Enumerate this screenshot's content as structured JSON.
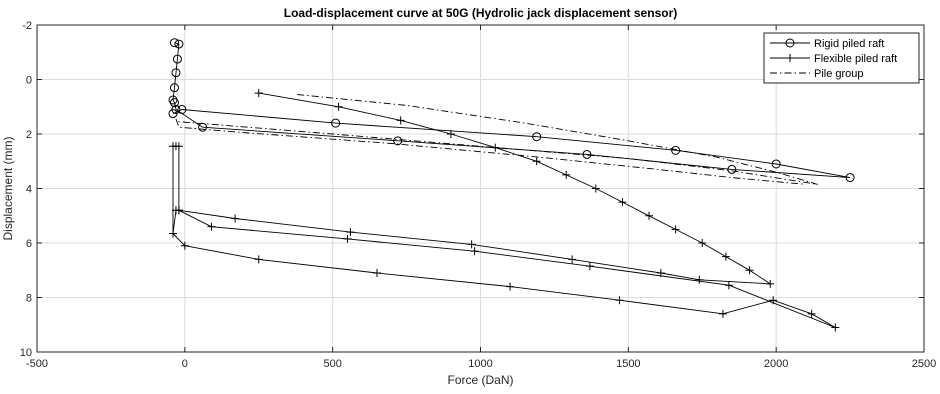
{
  "chart_data": {
    "type": "line",
    "title": "Load-displacement curve at 50G (Hydrolic jack displacement sensor)",
    "xlabel": "Force (DaN)",
    "ylabel": "Displacement (mm)",
    "xlim": [
      -500,
      2500
    ],
    "ylim": [
      -2,
      10
    ],
    "y_reversed": true,
    "grid": true,
    "legend_position": "top-right",
    "x_ticks": [
      "-500",
      "0",
      "500",
      "1000",
      "1500",
      "2000",
      "2500"
    ],
    "y_ticks": [
      "-2",
      "0",
      "2",
      "4",
      "6",
      "8",
      "10"
    ],
    "series": [
      {
        "name": "Rigid piled raft",
        "marker": "circle",
        "line": "solid",
        "points": [
          [
            -35,
            -1.35
          ],
          [
            -20,
            -1.3
          ],
          [
            -25,
            -0.75
          ],
          [
            -30,
            -0.25
          ],
          [
            -35,
            0.3
          ],
          [
            -40,
            0.75
          ],
          [
            -35,
            0.85
          ],
          [
            -30,
            1.1
          ],
          [
            60,
            1.75
          ],
          [
            720,
            2.25
          ],
          [
            1360,
            2.75
          ],
          [
            1850,
            3.3
          ],
          [
            2250,
            3.6
          ],
          [
            2000,
            3.1
          ],
          [
            1660,
            2.6
          ],
          [
            1190,
            2.1
          ],
          [
            510,
            1.6
          ],
          [
            -10,
            1.1
          ],
          [
            -40,
            1.25
          ]
        ]
      },
      {
        "name": "Flexible piled raft",
        "marker": "plus",
        "line": "solid",
        "points": [
          [
            250,
            0.5
          ],
          [
            520,
            1.0
          ],
          [
            730,
            1.5
          ],
          [
            900,
            2.0
          ],
          [
            1050,
            2.5
          ],
          [
            1190,
            3.0
          ],
          [
            1290,
            3.5
          ],
          [
            1390,
            4.0
          ],
          [
            1480,
            4.5
          ],
          [
            1570,
            5.0
          ],
          [
            1660,
            5.5
          ],
          [
            1750,
            6.0
          ],
          [
            1830,
            6.5
          ],
          [
            1910,
            7.0
          ],
          [
            1980,
            7.5
          ],
          [
            1740,
            7.35
          ],
          [
            1610,
            7.1
          ],
          [
            1310,
            6.6
          ],
          [
            970,
            6.05
          ],
          [
            560,
            5.6
          ],
          [
            170,
            5.1
          ],
          [
            -20,
            4.8
          ],
          [
            -30,
            4.8
          ],
          [
            -40,
            5.65
          ],
          [
            -40,
            2.45
          ],
          [
            -30,
            2.45
          ],
          [
            -20,
            2.45
          ],
          [
            -20,
            4.8
          ],
          [
            90,
            5.4
          ],
          [
            550,
            5.85
          ],
          [
            980,
            6.3
          ],
          [
            1370,
            6.85
          ],
          [
            1840,
            7.55
          ],
          [
            2200,
            9.1
          ],
          [
            2120,
            8.6
          ],
          [
            1990,
            8.1
          ],
          [
            1820,
            8.6
          ],
          [
            1470,
            8.1
          ],
          [
            1100,
            7.6
          ],
          [
            650,
            7.1
          ],
          [
            250,
            6.6
          ],
          [
            0,
            6.1
          ],
          [
            -40,
            5.65
          ]
        ]
      },
      {
        "name": "Pile group",
        "marker": "none",
        "line": "dashdot",
        "points_upper": [
          [
            380,
            0.55
          ],
          [
            750,
            0.95
          ],
          [
            1150,
            1.6
          ],
          [
            1500,
            2.25
          ],
          [
            1800,
            2.85
          ],
          [
            2000,
            3.4
          ],
          [
            2140,
            3.85
          ],
          [
            1850,
            3.35
          ],
          [
            1500,
            2.9
          ],
          [
            1000,
            2.45
          ],
          [
            500,
            2.0
          ],
          [
            -20,
            1.55
          ],
          [
            -30,
            1.45
          ]
        ],
        "points_lower": [
          [
            -30,
            1.45
          ],
          [
            -20,
            1.75
          ],
          [
            200,
            1.95
          ],
          [
            700,
            2.35
          ],
          [
            1200,
            2.85
          ],
          [
            1600,
            3.3
          ],
          [
            1850,
            3.6
          ],
          [
            2100,
            3.85
          ]
        ]
      }
    ]
  }
}
